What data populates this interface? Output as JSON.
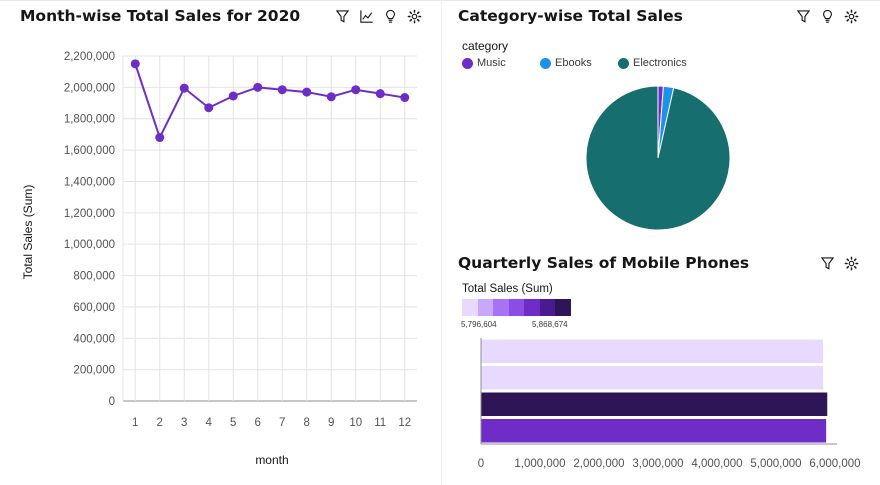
{
  "panels": {
    "line": {
      "title": "Month-wise Total Sales for 2020",
      "tools": [
        "filter-icon",
        "chart-type-icon",
        "insight-bulb-icon",
        "settings-gear-icon"
      ]
    },
    "pie": {
      "title": "Category-wise Total Sales",
      "tools": [
        "filter-icon",
        "insight-bulb-icon",
        "settings-gear-icon"
      ]
    },
    "bar": {
      "title": "Quarterly Sales of Mobile Phones",
      "tools": [
        "filter-icon",
        "settings-gear-icon"
      ]
    }
  },
  "colors": {
    "purple": "#6e2dc6",
    "ebooks": "#1b91ea",
    "electronics": "#176e6e",
    "grid": "#e4e4e4",
    "axis": "#8d8d8d"
  },
  "chart_data": [
    {
      "type": "line",
      "title": "Month-wise Total Sales for 2020",
      "xlabel": "month",
      "ylabel": "Total Sales (Sum)",
      "x": [
        1,
        2,
        3,
        4,
        5,
        6,
        7,
        8,
        9,
        10,
        11,
        12
      ],
      "x_ticks": [
        "1",
        "2",
        "3",
        "4",
        "5",
        "6",
        "7",
        "8",
        "9",
        "10",
        "11",
        "12"
      ],
      "values": [
        2150000,
        1680000,
        1995000,
        1870000,
        1945000,
        2000000,
        1985000,
        1970000,
        1940000,
        1985000,
        1960000,
        1935000
      ],
      "ylim": [
        0,
        2200000
      ],
      "y_ticks": [
        "0",
        "200,000",
        "400,000",
        "600,000",
        "800,000",
        "1,000,000",
        "1,200,000",
        "1,400,000",
        "1,600,000",
        "1,800,000",
        "2,000,000",
        "2,200,000"
      ],
      "grid": true
    },
    {
      "type": "pie",
      "title": "Category-wise Total Sales",
      "legend_title": "category",
      "legend_position": "top-left",
      "categories": [
        "Music",
        "Ebooks",
        "Electronics"
      ],
      "values": [
        1.2,
        2.3,
        96.5
      ],
      "colors": [
        "#6e2dc6",
        "#1b91ea",
        "#176e6e"
      ]
    },
    {
      "type": "bar",
      "orientation": "horizontal",
      "title": "Quarterly Sales of Mobile Phones",
      "legend_title": "Total Sales (Sum)",
      "color_scale_min": "5,796,604",
      "color_scale_max": "5,868,674",
      "color_ramp": [
        "#e7d9ff",
        "#c8a7ff",
        "#a773f5",
        "#8a4de6",
        "#6e2dc6",
        "#4a1a8f",
        "#2e1558"
      ],
      "values": [
        5796604,
        5800000,
        5868674,
        5850000
      ],
      "bar_colors": [
        "#e7d9ff",
        "#e7d9ff",
        "#2e1558",
        "#6e2dc6"
      ],
      "xlim": [
        0,
        6000000
      ],
      "x_ticks": [
        "0",
        "1,000,000",
        "2,000,000",
        "3,000,000",
        "4,000,000",
        "5,000,000",
        "6,000,000"
      ]
    }
  ]
}
